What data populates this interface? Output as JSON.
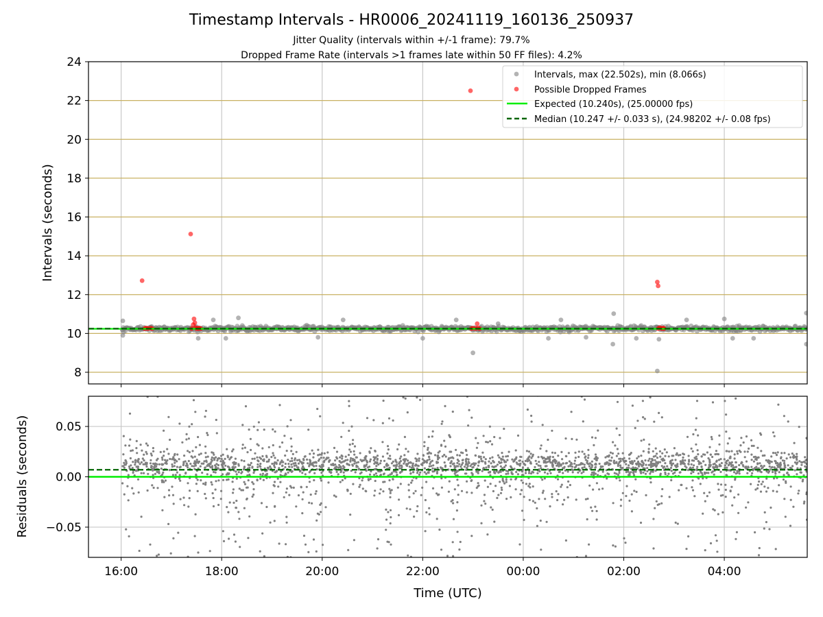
{
  "figure": {
    "title": "Timestamp Intervals - HR0006_20241119_160136_250937",
    "subtitle_1": "Jitter Quality (intervals within +/-1 frame): 79.7%",
    "subtitle_2": "Dropped Frame Rate (intervals >1 frames late within 50 FF files): 4.2%"
  },
  "colors": {
    "intervals": "#808080",
    "dropped": "#ff0000",
    "expected": "#00ee00",
    "median": "#006400",
    "grid_y_top": "#c8b060",
    "grid": "#c8c8c8"
  },
  "chart_data": [
    {
      "type": "scatter",
      "panel": "top",
      "ylabel": "Intervals (seconds)",
      "ylim": [
        7.4,
        24.0
      ],
      "yticks": [
        8,
        10,
        12,
        14,
        16,
        18,
        20,
        22,
        24
      ],
      "xlim_hours": [
        15.35,
        29.65
      ],
      "xticks": [
        "16:00",
        "18:00",
        "20:00",
        "22:00",
        "00:00",
        "02:00",
        "04:00"
      ],
      "grid": true,
      "legend_position": "top-right",
      "legend": [
        "Intervals, max (22.502s), min (8.066s)",
        "Possible Dropped Frames",
        "Expected (10.240s), (25.00000 fps)",
        "Median (10.247 +/- 0.033 s), (24.98202 +/- 0.08 fps)"
      ],
      "expected": 10.24,
      "median": 10.247,
      "intervals_band": {
        "x_start": "16:01",
        "x_end": "05:39",
        "typical_range": [
          10.0,
          10.5
        ]
      },
      "interval_outliers": [
        {
          "x": "16:02",
          "y": 10.65
        },
        {
          "x": "16:02",
          "y": 9.9
        },
        {
          "x": "17:32",
          "y": 9.75
        },
        {
          "x": "17:50",
          "y": 10.7
        },
        {
          "x": "18:05",
          "y": 9.75
        },
        {
          "x": "18:20",
          "y": 10.8
        },
        {
          "x": "19:55",
          "y": 9.8
        },
        {
          "x": "20:25",
          "y": 10.7
        },
        {
          "x": "22:00",
          "y": 9.75
        },
        {
          "x": "22:40",
          "y": 10.7
        },
        {
          "x": "23:00",
          "y": 9.0
        },
        {
          "x": "23:30",
          "y": 10.5
        },
        {
          "x": "00:30",
          "y": 9.75
        },
        {
          "x": "00:45",
          "y": 10.7
        },
        {
          "x": "01:15",
          "y": 9.8
        },
        {
          "x": "01:47",
          "y": 9.45
        },
        {
          "x": "01:48",
          "y": 11.02
        },
        {
          "x": "02:15",
          "y": 9.75
        },
        {
          "x": "02:40",
          "y": 8.066
        },
        {
          "x": "02:42",
          "y": 9.7
        },
        {
          "x": "03:15",
          "y": 10.7
        },
        {
          "x": "04:00",
          "y": 10.75
        },
        {
          "x": "04:10",
          "y": 9.75
        },
        {
          "x": "04:35",
          "y": 9.75
        },
        {
          "x": "05:38",
          "y": 11.05
        },
        {
          "x": "05:38",
          "y": 9.45
        }
      ],
      "dropped_frames": [
        {
          "x": "16:25",
          "y": 12.72
        },
        {
          "x": "16:28",
          "y": 10.25
        },
        {
          "x": "16:30",
          "y": 10.28
        },
        {
          "x": "16:32",
          "y": 10.25
        },
        {
          "x": "16:35",
          "y": 10.27
        },
        {
          "x": "16:37",
          "y": 10.25
        },
        {
          "x": "17:23",
          "y": 15.12
        },
        {
          "x": "17:24",
          "y": 10.25
        },
        {
          "x": "17:26",
          "y": 10.45
        },
        {
          "x": "17:27",
          "y": 10.75
        },
        {
          "x": "17:28",
          "y": 10.55
        },
        {
          "x": "17:29",
          "y": 10.3
        },
        {
          "x": "17:30",
          "y": 10.25
        },
        {
          "x": "17:32",
          "y": 10.25
        },
        {
          "x": "17:33",
          "y": 10.28
        },
        {
          "x": "17:35",
          "y": 10.25
        },
        {
          "x": "22:57",
          "y": 22.502
        },
        {
          "x": "22:58",
          "y": 10.25
        },
        {
          "x": "23:00",
          "y": 10.27
        },
        {
          "x": "23:03",
          "y": 10.25
        },
        {
          "x": "23:05",
          "y": 10.5
        },
        {
          "x": "23:06",
          "y": 10.28
        },
        {
          "x": "23:08",
          "y": 10.25
        },
        {
          "x": "02:40",
          "y": 12.65
        },
        {
          "x": "02:41",
          "y": 12.45
        },
        {
          "x": "02:41",
          "y": 10.25
        },
        {
          "x": "02:43",
          "y": 10.3
        },
        {
          "x": "02:45",
          "y": 10.25
        },
        {
          "x": "02:47",
          "y": 10.28
        },
        {
          "x": "02:48",
          "y": 10.25
        }
      ]
    },
    {
      "type": "scatter",
      "panel": "bottom",
      "xlabel": "Time (UTC)",
      "ylabel": "Residuals (seconds)",
      "ylim": [
        -0.08,
        0.08
      ],
      "yticks": [
        "−0.05",
        "0.00",
        "0.05"
      ],
      "ytick_values": [
        -0.05,
        0.0,
        0.05
      ],
      "xlim_hours": [
        15.35,
        29.65
      ],
      "xticks": [
        "16:00",
        "18:00",
        "20:00",
        "22:00",
        "00:00",
        "02:00",
        "04:00"
      ],
      "grid": true,
      "expected_residual": 0.0,
      "median_residual": 0.007,
      "residuals": {
        "x_start": "16:01",
        "x_end": "05:39",
        "spread": "dense cloud between -0.08 and 0.08, concentrated around 0.00 to 0.02"
      }
    }
  ]
}
